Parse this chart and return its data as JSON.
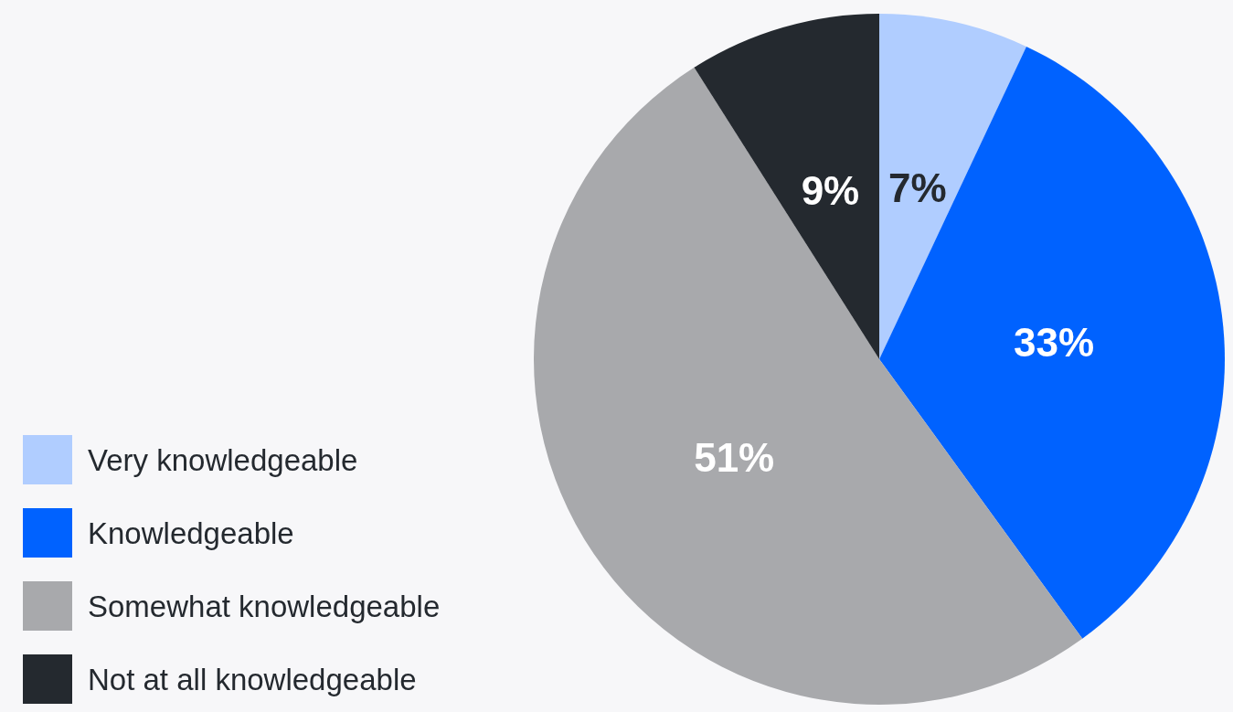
{
  "chart_data": {
    "type": "pie",
    "categories": [
      "Very knowledgeable",
      "Knowledgeable",
      "Somewhat knowledgeable",
      "Not at all knowledgeable"
    ],
    "values": [
      7,
      33,
      51,
      9
    ],
    "colors": [
      "#b0cdff",
      "#0062ff",
      "#a8a9ac",
      "#24292f"
    ],
    "value_labels": [
      "7%",
      "33%",
      "51%",
      "9%"
    ],
    "legend": "bottom left"
  }
}
